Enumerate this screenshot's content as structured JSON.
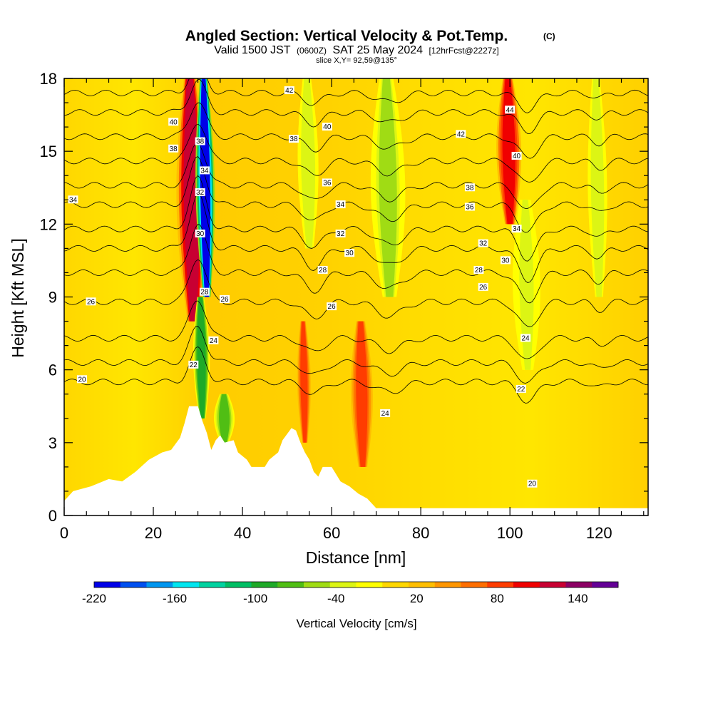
{
  "chart_data": {
    "type": "heatmap",
    "title_main": "Angled Section: Vertical Velocity & Pot.Temp.",
    "title_mark": "(C)",
    "subtitle_a": "Valid 1500 JST",
    "subtitle_b": "(0600Z)",
    "subtitle_c": "SAT 25 May 2024",
    "subtitle_d": "[12hrFcst@2227z]",
    "slice": "slice X,Y= 92,59@135°",
    "xlabel": "Distance [nm]",
    "ylabel": "Height [Kft MSL]",
    "xlim": [
      0,
      131
    ],
    "ylim": [
      0,
      18
    ],
    "x_ticks": [
      "0",
      "20",
      "40",
      "60",
      "80",
      "100",
      "120"
    ],
    "y_ticks": [
      "0",
      "3",
      "6",
      "9",
      "12",
      "15",
      "18"
    ],
    "colorbar": {
      "label": "Vertical Velocity [cm/s]",
      "min": -220,
      "max": 170,
      "tick_labels": [
        "-220",
        "-160",
        "-100",
        "-40",
        "20",
        "80",
        "140"
      ],
      "colors": [
        "#0000e8",
        "#0050f0",
        "#0096f0",
        "#00e6f0",
        "#00d2a0",
        "#00be64",
        "#1eaa28",
        "#50be14",
        "#a0dc14",
        "#dcf514",
        "#ffff00",
        "#ffd700",
        "#ffbe00",
        "#ff9600",
        "#ff6e00",
        "#ff3c00",
        "#f00000",
        "#c80032",
        "#8c0064",
        "#640096"
      ]
    },
    "terrain": [
      [
        0,
        0.6
      ],
      [
        2,
        1.0
      ],
      [
        6,
        1.2
      ],
      [
        10,
        1.5
      ],
      [
        13,
        1.4
      ],
      [
        16,
        1.8
      ],
      [
        19,
        2.3
      ],
      [
        22,
        2.6
      ],
      [
        24,
        2.7
      ],
      [
        26,
        3.2
      ],
      [
        27,
        3.8
      ],
      [
        28,
        4.5
      ],
      [
        30,
        4.5
      ],
      [
        31,
        3.9
      ],
      [
        32,
        3.4
      ],
      [
        33,
        2.7
      ],
      [
        34,
        3.1
      ],
      [
        35,
        3.3
      ],
      [
        36,
        3.0
      ],
      [
        38,
        3.1
      ],
      [
        39,
        2.6
      ],
      [
        41,
        2.3
      ],
      [
        42,
        2.0
      ],
      [
        45,
        2.0
      ],
      [
        46,
        2.3
      ],
      [
        48,
        2.6
      ],
      [
        49,
        3.1
      ],
      [
        51,
        3.6
      ],
      [
        52,
        3.5
      ],
      [
        53,
        3.0
      ],
      [
        54,
        2.6
      ],
      [
        55,
        2.3
      ],
      [
        56,
        1.8
      ],
      [
        57,
        1.6
      ],
      [
        58,
        2.0
      ],
      [
        60,
        2.0
      ],
      [
        61,
        1.7
      ],
      [
        62,
        1.4
      ],
      [
        64,
        1.2
      ],
      [
        66,
        0.9
      ],
      [
        68,
        0.7
      ],
      [
        70,
        0.3
      ],
      [
        131,
        0.3
      ]
    ],
    "vertical_velocity_features": [
      {
        "x": 29,
        "y_min": 8,
        "y_max": 18,
        "w": 130,
        "width_nm": 2.2
      },
      {
        "x": 32,
        "y_min": 9,
        "y_max": 18,
        "w": -210,
        "width_nm": 1.4
      },
      {
        "x": 31,
        "y_min": 4,
        "y_max": 9,
        "w": -90,
        "width_nm": 1.2
      },
      {
        "x": 36,
        "y_min": 3,
        "y_max": 5,
        "w": -80,
        "width_nm": 1.5
      },
      {
        "x": 54,
        "y_min": 3,
        "y_max": 8,
        "w": 90,
        "width_nm": 1.0
      },
      {
        "x": 67,
        "y_min": 2,
        "y_max": 8,
        "w": 90,
        "width_nm": 1.6
      },
      {
        "x": 55,
        "y_min": 11,
        "y_max": 18,
        "w": -40,
        "width_nm": 1.5
      },
      {
        "x": 73,
        "y_min": 9,
        "y_max": 18,
        "w": -50,
        "width_nm": 2.5
      },
      {
        "x": 100,
        "y_min": 12,
        "y_max": 18,
        "w": 110,
        "width_nm": 1.8
      },
      {
        "x": 104,
        "y_min": 6,
        "y_max": 13,
        "w": -30,
        "width_nm": 2.0
      },
      {
        "x": 120,
        "y_min": 9,
        "y_max": 18,
        "w": -40,
        "width_nm": 1.4
      }
    ],
    "pot_temp_contours": [
      {
        "value": 20,
        "base_y": 5.5
      },
      {
        "value": 22,
        "base_y": 6.3
      },
      {
        "value": 24,
        "base_y": 7.3
      },
      {
        "value": 26,
        "base_y": 8.8
      },
      {
        "value": 28,
        "base_y": 10.0
      },
      {
        "value": 30,
        "base_y": 11.0
      },
      {
        "value": 32,
        "base_y": 11.8
      },
      {
        "value": 34,
        "base_y": 12.8
      },
      {
        "value": 36,
        "base_y": 13.6
      },
      {
        "value": 38,
        "base_y": 14.6
      },
      {
        "value": 40,
        "base_y": 15.6
      },
      {
        "value": 42,
        "base_y": 16.6
      },
      {
        "value": 44,
        "base_y": 17.4
      }
    ],
    "contour_labels": [
      {
        "text": "34",
        "x": 2,
        "y": 13.0
      },
      {
        "text": "26",
        "x": 6,
        "y": 8.8
      },
      {
        "text": "20",
        "x": 4,
        "y": 5.6
      },
      {
        "text": "40",
        "x": 24.5,
        "y": 16.2
      },
      {
        "text": "38",
        "x": 24.5,
        "y": 15.1
      },
      {
        "text": "38",
        "x": 30.5,
        "y": 15.4
      },
      {
        "text": "34",
        "x": 31.5,
        "y": 14.2
      },
      {
        "text": "32",
        "x": 30.5,
        "y": 13.3
      },
      {
        "text": "30",
        "x": 30.5,
        "y": 11.6
      },
      {
        "text": "28",
        "x": 31.5,
        "y": 9.2
      },
      {
        "text": "26",
        "x": 36,
        "y": 8.9
      },
      {
        "text": "24",
        "x": 33.5,
        "y": 7.2
      },
      {
        "text": "22",
        "x": 29,
        "y": 6.2
      },
      {
        "text": "42",
        "x": 50.5,
        "y": 17.5
      },
      {
        "text": "40",
        "x": 59,
        "y": 16.0
      },
      {
        "text": "38",
        "x": 51.5,
        "y": 15.5
      },
      {
        "text": "36",
        "x": 59,
        "y": 13.7
      },
      {
        "text": "34",
        "x": 62,
        "y": 12.8
      },
      {
        "text": "32",
        "x": 62,
        "y": 11.6
      },
      {
        "text": "30",
        "x": 64,
        "y": 10.8
      },
      {
        "text": "28",
        "x": 58,
        "y": 10.1
      },
      {
        "text": "26",
        "x": 60,
        "y": 8.6
      },
      {
        "text": "24",
        "x": 72,
        "y": 4.2
      },
      {
        "text": "44",
        "x": 100,
        "y": 16.7
      },
      {
        "text": "42",
        "x": 89,
        "y": 15.7
      },
      {
        "text": "40",
        "x": 101.5,
        "y": 14.8
      },
      {
        "text": "38",
        "x": 91,
        "y": 13.5
      },
      {
        "text": "36",
        "x": 91,
        "y": 12.7
      },
      {
        "text": "34",
        "x": 101.5,
        "y": 11.8
      },
      {
        "text": "32",
        "x": 94,
        "y": 11.2
      },
      {
        "text": "30",
        "x": 99,
        "y": 10.5
      },
      {
        "text": "28",
        "x": 93,
        "y": 10.1
      },
      {
        "text": "26",
        "x": 94,
        "y": 9.4
      },
      {
        "text": "24",
        "x": 103.5,
        "y": 7.3
      },
      {
        "text": "22",
        "x": 102.5,
        "y": 5.2
      },
      {
        "text": "20",
        "x": 105,
        "y": 1.3
      }
    ]
  }
}
